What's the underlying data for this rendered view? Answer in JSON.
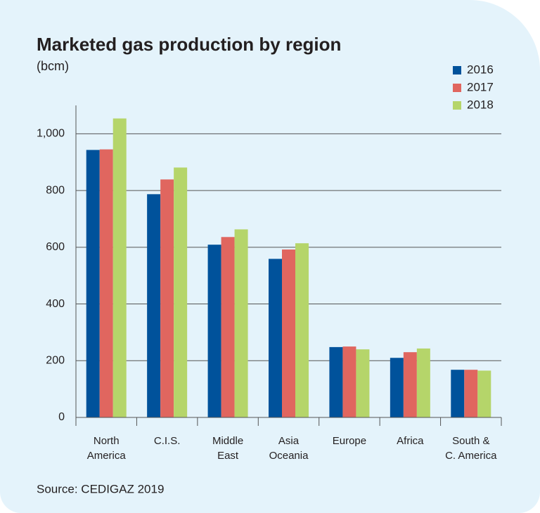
{
  "chart_data": {
    "type": "bar",
    "title": "Marketed gas production by region",
    "subtitle": "(bcm)",
    "source": "Source: CEDIGAZ 2019",
    "categories": [
      "North\nAmerica",
      "C.I.S.",
      "Middle\nEast",
      "Asia\nOceania",
      "Europe",
      "Africa",
      "South &\nC. America"
    ],
    "series": [
      {
        "name": "2016",
        "color": "#00529b",
        "values": [
          943,
          787,
          609,
          559,
          248,
          210,
          168
        ]
      },
      {
        "name": "2017",
        "color": "#e0665f",
        "values": [
          945,
          839,
          636,
          592,
          250,
          230,
          168
        ]
      },
      {
        "name": "2018",
        "color": "#b5d56a",
        "values": [
          1054,
          881,
          663,
          614,
          240,
          243,
          165
        ]
      }
    ],
    "ylim": [
      0,
      1100
    ],
    "yticks": [
      0,
      200,
      400,
      600,
      800,
      {
        "value": 1000,
        "label": "1,000"
      }
    ],
    "grid": true,
    "legend": "top-right"
  }
}
